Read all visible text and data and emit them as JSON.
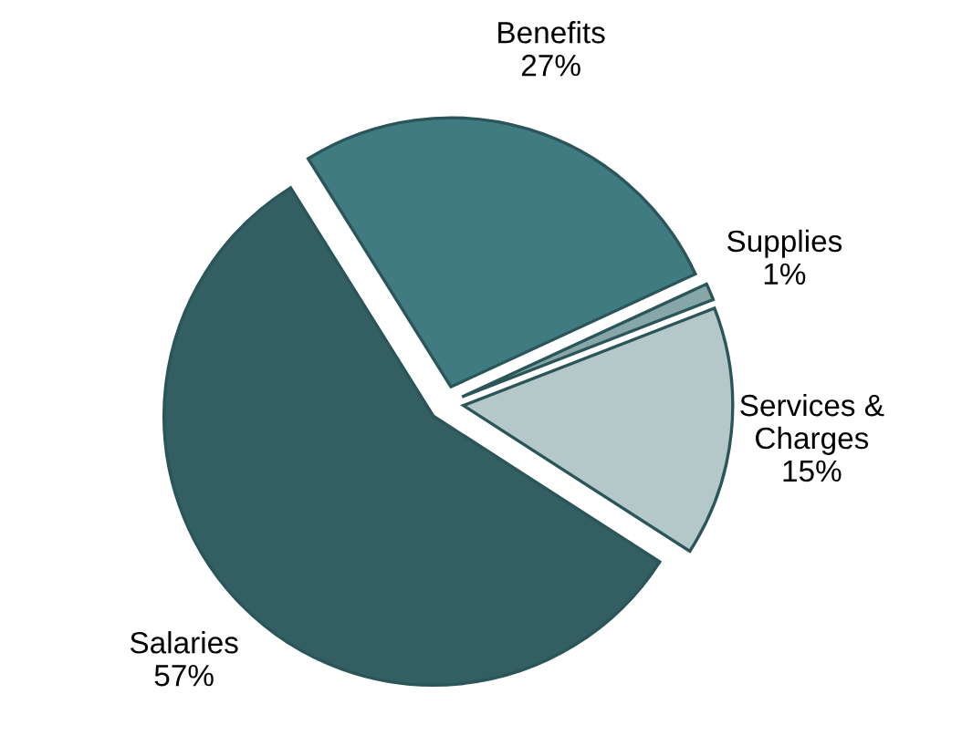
{
  "chart_data": {
    "type": "pie",
    "categories": [
      "Benefits",
      "Supplies",
      "Services &\nCharges",
      "Salaries"
    ],
    "values": [
      27,
      1,
      15,
      57
    ],
    "value_labels": [
      "27%",
      "1%",
      "15%",
      "57%"
    ],
    "colors": [
      "#3f7b80",
      "#86a6a8",
      "#b4c7c9",
      "#335f63"
    ],
    "legend": false
  }
}
